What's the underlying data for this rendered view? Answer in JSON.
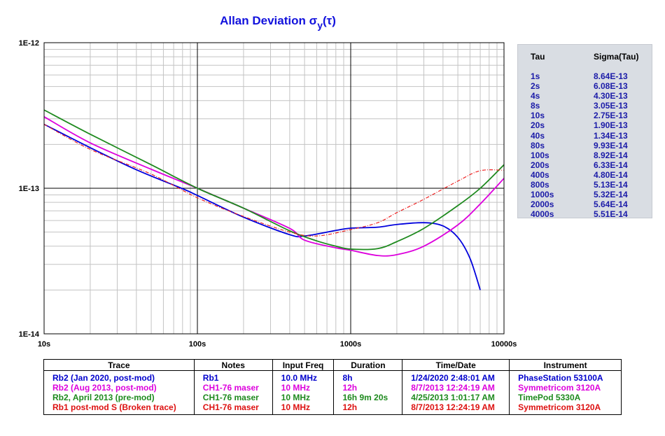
{
  "title": "Allan Deviation σy(τ)",
  "title_main": "Allan Deviation σ",
  "title_sub": "y",
  "title_tail": "(τ)",
  "chart_data": {
    "type": "line",
    "xscale": "log",
    "yscale": "log",
    "xlim": [
      10,
      10000
    ],
    "ylim": [
      1e-14,
      1e-12
    ],
    "grid": true,
    "x_tick_labels": [
      "10s",
      "100s",
      "1000s",
      "10000s"
    ],
    "y_tick_labels": [
      "1E-12",
      "1E-13",
      "1E-14"
    ],
    "series": [
      {
        "name": "Rb2 (Jan 2020, post-mod)",
        "color": "#0000dd",
        "style": "solid",
        "points": [
          [
            10,
            2.75e-13
          ],
          [
            20,
            1.9e-13
          ],
          [
            40,
            1.34e-13
          ],
          [
            80,
            9.93e-14
          ],
          [
            100,
            8.92e-14
          ],
          [
            200,
            6.33e-14
          ],
          [
            400,
            4.8e-14
          ],
          [
            500,
            4.7e-14
          ],
          [
            800,
            5.13e-14
          ],
          [
            1000,
            5.32e-14
          ],
          [
            1500,
            5.4e-14
          ],
          [
            2000,
            5.64e-14
          ],
          [
            3000,
            5.8e-14
          ],
          [
            4000,
            5.51e-14
          ],
          [
            5000,
            4.6e-14
          ],
          [
            6000,
            3.3e-14
          ],
          [
            7000,
            2e-14
          ]
        ]
      },
      {
        "name": "Rb2 (Aug 2013, post-mod)",
        "color": "#dd00dd",
        "style": "solid",
        "points": [
          [
            10,
            3.1e-13
          ],
          [
            20,
            2.05e-13
          ],
          [
            50,
            1.35e-13
          ],
          [
            100,
            1e-13
          ],
          [
            200,
            7.3e-14
          ],
          [
            400,
            5.3e-14
          ],
          [
            500,
            4.4e-14
          ],
          [
            800,
            3.9e-14
          ],
          [
            1000,
            3.75e-14
          ],
          [
            1500,
            3.45e-14
          ],
          [
            2000,
            3.5e-14
          ],
          [
            3000,
            4e-14
          ],
          [
            5000,
            5.6e-14
          ],
          [
            7000,
            7.8e-14
          ],
          [
            10000,
            1.17e-13
          ]
        ]
      },
      {
        "name": "Rb2, April 2013 (pre-mod)",
        "color": "#1e8a1e",
        "style": "solid",
        "points": [
          [
            10,
            3.45e-13
          ],
          [
            20,
            2.35e-13
          ],
          [
            50,
            1.45e-13
          ],
          [
            100,
            1e-13
          ],
          [
            200,
            7.3e-14
          ],
          [
            400,
            5.1e-14
          ],
          [
            600,
            4.35e-14
          ],
          [
            800,
            4e-14
          ],
          [
            1000,
            3.82e-14
          ],
          [
            1500,
            3.85e-14
          ],
          [
            2000,
            4.3e-14
          ],
          [
            3000,
            5.3e-14
          ],
          [
            5000,
            7.6e-14
          ],
          [
            7000,
            1e-13
          ],
          [
            10000,
            1.45e-13
          ]
        ]
      },
      {
        "name": "Rb1 post-mod S (Broken trace)",
        "color": "#ee2222",
        "style": "dashdot",
        "points": [
          [
            10,
            2.75e-13
          ],
          [
            20,
            1.85e-13
          ],
          [
            50,
            1.25e-13
          ],
          [
            100,
            8.6e-14
          ],
          [
            200,
            6.4e-14
          ],
          [
            400,
            5e-14
          ],
          [
            600,
            4.7e-14
          ],
          [
            1000,
            5.2e-14
          ],
          [
            1500,
            5.8e-14
          ],
          [
            2000,
            6.8e-14
          ],
          [
            3000,
            8.4e-14
          ],
          [
            5000,
            1.12e-13
          ],
          [
            7000,
            1.32e-13
          ],
          [
            10000,
            1.33e-13
          ]
        ]
      }
    ]
  },
  "tau_table": {
    "header_tau": "Tau",
    "header_sigma": "Sigma(Tau)",
    "rows": [
      {
        "tau": "1s",
        "sigma": "8.64E-13"
      },
      {
        "tau": "2s",
        "sigma": "6.08E-13"
      },
      {
        "tau": "4s",
        "sigma": "4.30E-13"
      },
      {
        "tau": "8s",
        "sigma": "3.05E-13"
      },
      {
        "tau": "10s",
        "sigma": "2.75E-13"
      },
      {
        "tau": "20s",
        "sigma": "1.90E-13"
      },
      {
        "tau": "40s",
        "sigma": "1.34E-13"
      },
      {
        "tau": "80s",
        "sigma": "9.93E-14"
      },
      {
        "tau": "100s",
        "sigma": "8.92E-14"
      },
      {
        "tau": "200s",
        "sigma": "6.33E-14"
      },
      {
        "tau": "400s",
        "sigma": "4.80E-14"
      },
      {
        "tau": "800s",
        "sigma": "5.13E-14"
      },
      {
        "tau": "1000s",
        "sigma": "5.32E-14"
      },
      {
        "tau": "2000s",
        "sigma": "5.64E-14"
      },
      {
        "tau": "4000s",
        "sigma": "5.51E-14"
      }
    ]
  },
  "trace_table": {
    "headers": [
      "Trace",
      "Notes",
      "Input Freq",
      "Duration",
      "Time/Date",
      "Instrument"
    ],
    "rows": [
      {
        "color": "#0000cc",
        "cells": [
          "Rb2 (Jan 2020, post-mod)",
          "Rb1",
          "10.0 MHz",
          "8h",
          "1/24/2020 2:48:01 AM",
          "PhaseStation 53100A"
        ]
      },
      {
        "color": "#dd00dd",
        "cells": [
          "Rb2 (Aug 2013, post-mod)",
          "CH1-76 maser",
          "10 MHz",
          "12h",
          "8/7/2013 12:24:19 AM",
          "Symmetricom 3120A"
        ]
      },
      {
        "color": "#1e8a1e",
        "cells": [
          "Rb2, April 2013 (pre-mod)",
          "CH1-76 maser",
          "10 MHz",
          "16h 9m 20s",
          "4/25/2013 1:01:17 AM",
          "TimePod 5330A"
        ]
      },
      {
        "color": "#dd1111",
        "cells": [
          "Rb1 post-mod S (Broken trace)",
          "CH1-76 maser",
          "10 MHz",
          "12h",
          "8/7/2013 12:24:19 AM",
          "Symmetricom 3120A"
        ]
      }
    ]
  }
}
